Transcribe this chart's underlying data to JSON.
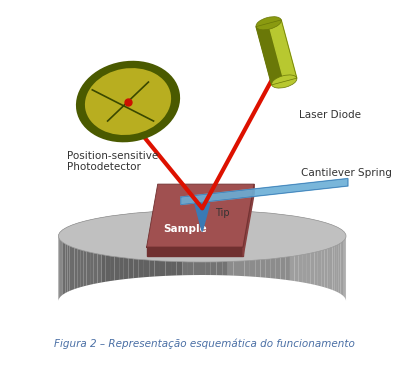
{
  "title": "Figura 2 – Representação esquemática do funcionamento",
  "title_fontsize": 7.5,
  "title_color": "#4a6fa5",
  "bg_color": "#ffffff",
  "label_photodetector": "Position-sensitive\nPhotodetector",
  "label_laser": "Laser Diode",
  "label_cantilever": "Cantilever Spring",
  "label_tip": "Tip",
  "label_sample": "Sample",
  "label_fontsize": 7.5,
  "label_color": "#333333",
  "disk_top_color": "#c0c0c0",
  "disk_side_dark": "#555555",
  "disk_side_mid": "#888888",
  "disk_side_light": "#aaaaaa",
  "sample_top_color": "#a05050",
  "sample_front_color": "#703030",
  "sample_right_color": "#884040",
  "cantilever_color": "#6baed6",
  "cantilever_dark": "#3a7ab5",
  "tip_color": "#3a7ab5",
  "laser_beam_color": "#dd1100",
  "pd_outer_color": "#4a5a00",
  "pd_inner_color": "#b8ae20",
  "pd_line_color": "#3a4800",
  "ld_body_color": "#b8c830",
  "ld_top_color": "#8a9a10",
  "ld_dark_color": "#6a7808"
}
